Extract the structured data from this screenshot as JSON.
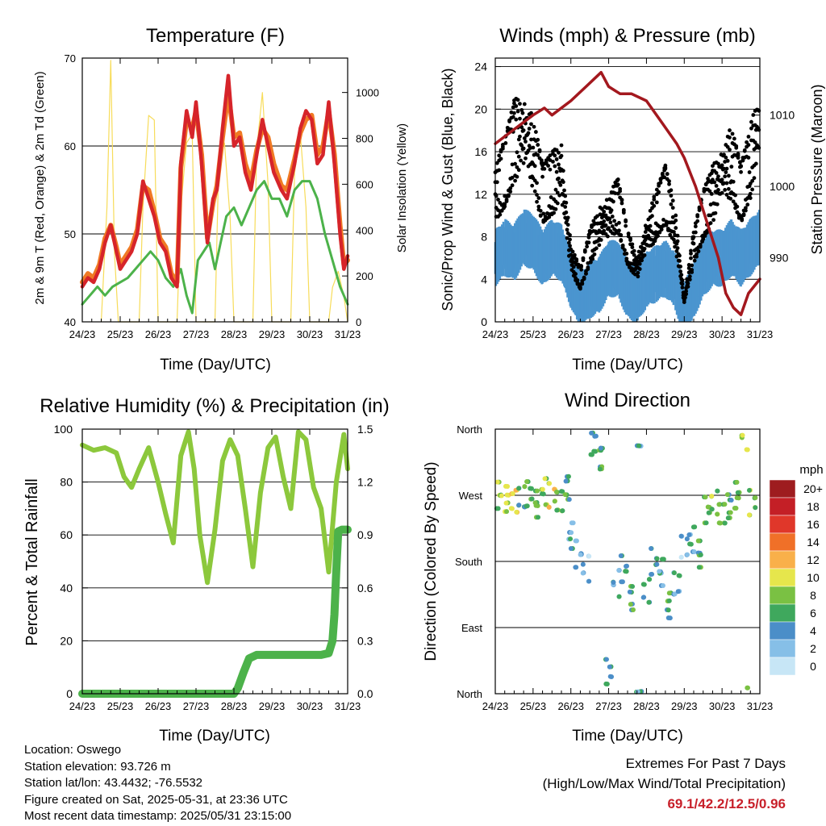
{
  "x_ticks": [
    "24/23",
    "25/23",
    "26/23",
    "27/23",
    "28/23",
    "29/23",
    "30/23",
    "31/23"
  ],
  "panels": {
    "temperature": {
      "title": "Temperature (F)",
      "xlabel": "Time (Day/UTC)",
      "ylabel_left": "2m & 9m T (Red, Orange) & 2m Td (Green)",
      "ylabel_right": "Solar Insolation (Yellow)",
      "left_ticks": [
        "40",
        "50",
        "60",
        "70"
      ],
      "right_ticks": [
        "0",
        "200",
        "400",
        "600",
        "800",
        "1000"
      ]
    },
    "winds": {
      "title": "Winds (mph) & Pressure (mb)",
      "xlabel": "Time (Day/UTC)",
      "ylabel_left": "Sonic/Prop Wind & Gust (Blue, Black)",
      "ylabel_right": "Station Pressure (Maroon)",
      "left_ticks": [
        "0",
        "4",
        "8",
        "12",
        "16",
        "20",
        "24"
      ],
      "right_ticks": [
        "990",
        "1000",
        "1010"
      ]
    },
    "humidity": {
      "title": "Relative Humidity (%) & Precipitation (in)",
      "xlabel": "Time (Day/UTC)",
      "ylabel_left": "Percent & Total Rainfall",
      "left_ticks": [
        "0",
        "20",
        "40",
        "60",
        "80",
        "100"
      ],
      "right_ticks": [
        "0.0",
        "0.3",
        "0.6",
        "0.9",
        "1.2",
        "1.5"
      ]
    },
    "direction": {
      "title": "Wind Direction",
      "xlabel": "Time (Day/UTC)",
      "ylabel_left": "Direction (Colored By Speed)",
      "left_ticks": [
        "North",
        "East",
        "South",
        "West",
        "North"
      ],
      "legend_title": "mph",
      "legend_labels": [
        "20+",
        "18",
        "16",
        "14",
        "12",
        "10",
        "8",
        "6",
        "4",
        "2",
        "0"
      ]
    }
  },
  "colors": {
    "temp_2m": "#d6242a",
    "temp_9m": "#f07a24",
    "dewpoint": "#4cb24a",
    "solar": "#f7dc5a",
    "wind": "#4b95cf",
    "gust": "#000000",
    "pressure": "#a3181e",
    "rh": "#8cc83c",
    "precip": "#4cb24a",
    "speed_scale": [
      "#c7e6f6",
      "#86bfe7",
      "#4b8ec8",
      "#3fa85d",
      "#7ac143",
      "#e6e64c",
      "#f9b04a",
      "#f07028",
      "#e0372a",
      "#c41f26",
      "#9e1c1f"
    ]
  },
  "chart_data": [
    {
      "type": "line",
      "title": "Temperature (F)",
      "xlabel": "Time (Day/UTC)",
      "ylabel": "2m & 9m T (Red, Orange) & 2m Td (Green)",
      "y2label": "Solar Insolation (Yellow)",
      "ylim": [
        40,
        70
      ],
      "y2lim": [
        0,
        1150
      ],
      "x_unit": "days since 24/23",
      "series": [
        {
          "name": "2m T",
          "axis": "left",
          "x": [
            0,
            0.15,
            0.3,
            0.45,
            0.6,
            0.75,
            0.9,
            1.0,
            1.15,
            1.3,
            1.45,
            1.6,
            1.75,
            1.9,
            2.05,
            2.2,
            2.35,
            2.5,
            2.6,
            2.75,
            2.9,
            3.0,
            3.15,
            3.3,
            3.45,
            3.55,
            3.7,
            3.85,
            4.0,
            4.15,
            4.3,
            4.45,
            4.6,
            4.75,
            4.9,
            5.05,
            5.25,
            5.4,
            5.6,
            5.75,
            5.9,
            6.05,
            6.2,
            6.35,
            6.5,
            6.65,
            6.8,
            6.9,
            7.0
          ],
          "y": [
            44,
            45,
            44.5,
            46,
            49,
            51,
            48,
            46,
            47,
            48,
            50,
            56,
            54,
            52,
            49,
            48,
            45,
            44,
            58,
            64,
            61,
            65,
            58,
            49,
            54,
            55,
            62,
            68,
            60,
            61,
            57,
            55,
            59,
            63,
            60,
            57,
            55,
            54,
            58,
            62,
            64,
            63,
            58,
            59,
            65,
            58,
            50,
            46,
            47.5
          ]
        },
        {
          "name": "9m T",
          "axis": "left",
          "x": [
            0,
            0.15,
            0.3,
            0.45,
            0.6,
            0.75,
            0.9,
            1.0,
            1.15,
            1.3,
            1.45,
            1.6,
            1.75,
            1.9,
            2.05,
            2.2,
            2.35,
            2.5,
            2.6,
            2.75,
            2.9,
            3.0,
            3.15,
            3.3,
            3.45,
            3.55,
            3.7,
            3.85,
            4.0,
            4.15,
            4.3,
            4.45,
            4.6,
            4.75,
            4.9,
            5.05,
            5.25,
            5.4,
            5.6,
            5.75,
            5.9,
            6.05,
            6.2,
            6.35,
            6.5,
            6.65,
            6.8,
            6.9,
            7.0
          ],
          "y": [
            44.5,
            45.5,
            45,
            46.5,
            49.5,
            51,
            48.5,
            46.5,
            47.5,
            48.5,
            50.5,
            55.5,
            55,
            52.5,
            49.5,
            48.5,
            45.5,
            44.5,
            57.5,
            63,
            62,
            64,
            59,
            49.5,
            53.5,
            55.5,
            61,
            66,
            61,
            61.5,
            58,
            56,
            59.5,
            62,
            61,
            58,
            55.5,
            55,
            58.5,
            61.5,
            63,
            63.5,
            59,
            60,
            64,
            59,
            51,
            46.5,
            47
          ]
        },
        {
          "name": "2m Td",
          "axis": "left",
          "x": [
            0,
            0.2,
            0.4,
            0.6,
            0.8,
            1.0,
            1.2,
            1.4,
            1.6,
            1.8,
            2.0,
            2.2,
            2.4,
            2.6,
            2.75,
            2.9,
            3.05,
            3.2,
            3.35,
            3.5,
            3.65,
            3.8,
            4.0,
            4.2,
            4.4,
            4.6,
            4.8,
            5.0,
            5.2,
            5.4,
            5.6,
            5.8,
            6.0,
            6.2,
            6.4,
            6.6,
            6.8,
            7.0
          ],
          "y": [
            42,
            43,
            44,
            43,
            44,
            44.5,
            45,
            46,
            47,
            48,
            47,
            45,
            44,
            46,
            43,
            41,
            47,
            48,
            49,
            46,
            49,
            52,
            53,
            51,
            53,
            55,
            56,
            54,
            54,
            52,
            55,
            56,
            56,
            54,
            50,
            47,
            44,
            42
          ]
        },
        {
          "name": "Solar Insolation",
          "axis": "right",
          "x": [
            0.5,
            0.65,
            0.75,
            0.85,
            0.95,
            1.5,
            1.6,
            1.75,
            1.9,
            2.0,
            2.5,
            2.6,
            2.75,
            2.9,
            3.0,
            3.5,
            3.6,
            3.75,
            3.9,
            4.0,
            4.5,
            4.6,
            4.75,
            4.9,
            5.0,
            5.5,
            5.6,
            5.75,
            5.9,
            6.0,
            6.5,
            6.6,
            6.75,
            6.9,
            7.0
          ],
          "y": [
            0,
            500,
            1140,
            300,
            0,
            0,
            500,
            900,
            880,
            0,
            0,
            500,
            780,
            820,
            0,
            0,
            700,
            780,
            450,
            0,
            0,
            750,
            1000,
            600,
            0,
            0,
            650,
            820,
            500,
            0,
            0,
            150,
            220,
            110,
            0
          ]
        }
      ]
    },
    {
      "type": "line",
      "title": "Winds (mph) & Pressure (mb)",
      "xlabel": "Time (Day/UTC)",
      "ylabel": "Sonic/Prop Wind & Gust (Blue, Black)",
      "y2label": "Station Pressure (Maroon)",
      "ylim": [
        0,
        24.8
      ],
      "y2lim": [
        981,
        1018
      ],
      "x_unit": "days since 24/23",
      "series": [
        {
          "name": "Wind",
          "axis": "left",
          "x": [
            0,
            0.25,
            0.5,
            0.75,
            1.0,
            1.25,
            1.5,
            1.75,
            2.0,
            2.25,
            2.5,
            2.75,
            3.0,
            3.25,
            3.5,
            3.75,
            4.0,
            4.25,
            4.5,
            4.75,
            5.0,
            5.25,
            5.5,
            5.75,
            6.0,
            6.25,
            6.5,
            6.75,
            7.0
          ],
          "y": [
            6,
            7,
            6.5,
            8,
            7.5,
            6,
            7,
            6.5,
            4,
            2,
            3,
            3.5,
            5,
            5,
            3,
            2.5,
            4,
            4.5,
            5,
            4,
            1,
            3,
            5,
            6,
            6,
            7,
            6,
            7,
            8
          ]
        },
        {
          "name": "Gust",
          "axis": "left",
          "x": [
            0,
            0.25,
            0.5,
            0.75,
            1.0,
            1.25,
            1.5,
            1.75,
            2.0,
            2.25,
            2.5,
            2.75,
            3.0,
            3.25,
            3.5,
            3.75,
            4.0,
            4.25,
            4.5,
            4.75,
            5.0,
            5.25,
            5.5,
            5.75,
            6.0,
            6.25,
            6.5,
            6.75,
            7.0
          ],
          "y": [
            12,
            14,
            17,
            18,
            16,
            12,
            13,
            14,
            6,
            4,
            7,
            9,
            10,
            11,
            7,
            5,
            8,
            10,
            12,
            9,
            2,
            7,
            10,
            12,
            14,
            15,
            12,
            15,
            19
          ]
        },
        {
          "name": "Station Pressure",
          "axis": "right",
          "x": [
            0,
            0.5,
            1.0,
            1.3,
            1.5,
            2.0,
            2.4,
            2.8,
            3.0,
            3.3,
            3.6,
            4.0,
            4.4,
            4.8,
            5.0,
            5.3,
            5.6,
            5.9,
            6.1,
            6.3,
            6.5,
            6.7,
            7.0
          ],
          "y": [
            1006,
            1008,
            1010,
            1011,
            1010,
            1012,
            1014,
            1016,
            1014,
            1013,
            1013,
            1012,
            1009,
            1006,
            1004,
            1000,
            995,
            990,
            985,
            983,
            982,
            985,
            987
          ]
        }
      ]
    },
    {
      "type": "line",
      "title": "Relative Humidity (%) & Precipitation (in)",
      "xlabel": "Time (Day/UTC)",
      "ylabel": "Percent & Total Rainfall",
      "ylim": [
        0,
        100
      ],
      "y2lim": [
        0,
        1.5
      ],
      "x_unit": "days since 24/23",
      "series": [
        {
          "name": "Relative Humidity",
          "axis": "left",
          "x": [
            0,
            0.3,
            0.6,
            0.9,
            1.1,
            1.3,
            1.5,
            1.75,
            2.0,
            2.2,
            2.4,
            2.6,
            2.8,
            2.95,
            3.1,
            3.3,
            3.5,
            3.7,
            3.9,
            4.1,
            4.3,
            4.5,
            4.7,
            4.9,
            5.1,
            5.3,
            5.5,
            5.7,
            5.9,
            6.1,
            6.3,
            6.5,
            6.7,
            6.9,
            7.0
          ],
          "y": [
            94,
            92,
            93,
            91,
            82,
            78,
            85,
            93,
            80,
            68,
            57,
            90,
            99,
            85,
            60,
            42,
            62,
            88,
            96,
            90,
            70,
            48,
            76,
            93,
            97,
            82,
            70,
            99,
            96,
            78,
            70,
            46,
            80,
            98,
            85
          ]
        },
        {
          "name": "Total Precipitation",
          "axis": "right",
          "x": [
            0,
            1,
            2,
            3,
            4,
            4.1,
            4.25,
            4.4,
            4.6,
            5,
            5.5,
            6,
            6.3,
            6.5,
            6.6,
            6.65,
            6.7,
            6.75,
            6.85,
            7.0
          ],
          "y": [
            0,
            0,
            0,
            0,
            0,
            0.03,
            0.12,
            0.2,
            0.22,
            0.22,
            0.22,
            0.22,
            0.22,
            0.23,
            0.3,
            0.45,
            0.7,
            0.92,
            0.93,
            0.93
          ]
        }
      ]
    },
    {
      "type": "scatter",
      "title": "Wind Direction",
      "xlabel": "Time (Day/UTC)",
      "ylabel": "Direction (Colored By Speed)",
      "ylim": [
        0,
        360
      ],
      "y_ticks": [
        "North",
        "East",
        "South",
        "West",
        "North"
      ],
      "legend": "right",
      "x_unit": "days since 24/23",
      "series": [
        {
          "name": "Wind Direction",
          "x": [
            0.1,
            0.3,
            0.5,
            0.7,
            0.9,
            1.1,
            1.3,
            1.5,
            1.7,
            1.9,
            2.0,
            2.2,
            2.4,
            2.6,
            2.8,
            3.0,
            3.2,
            3.4,
            3.6,
            3.8,
            4.0,
            4.2,
            4.4,
            4.6,
            4.8,
            5.0,
            5.2,
            5.4,
            5.6,
            5.8,
            6.0,
            6.2,
            6.4,
            6.6,
            6.8
          ],
          "y": [
            270,
            265,
            262,
            268,
            272,
            258,
            275,
            270,
            262,
            280,
            215,
            190,
            170,
            340,
            320,
            30,
            150,
            170,
            130,
            350,
            140,
            180,
            165,
            120,
            150,
            200,
            210,
            190,
            250,
            260,
            245,
            255,
            270,
            350,
            260
          ],
          "speed": [
            8,
            9,
            11,
            6,
            7,
            7,
            8,
            10,
            7,
            6,
            4,
            3,
            2,
            5,
            6,
            5,
            4,
            5,
            6,
            4,
            5,
            5,
            4,
            6,
            4,
            2,
            4,
            6,
            7,
            8,
            7,
            6,
            7,
            9,
            8
          ]
        }
      ]
    }
  ],
  "station": {
    "location": "Location: Oswego",
    "elevation": "Station elevation: 93.726 m",
    "latlon": "Station lat/lon: 43.4432; -76.5532",
    "created": "Figure created on Sat, 2025-05-31, at 23:36 UTC",
    "recent": "Most recent data timestamp: 2025/05/31 23:15:00"
  },
  "extremes": {
    "heading": "Extremes For Past 7 Days",
    "subheading": "(High/Low/Max Wind/Total Precipitation)",
    "values": "69.1/42.2/12.5/0.96"
  }
}
